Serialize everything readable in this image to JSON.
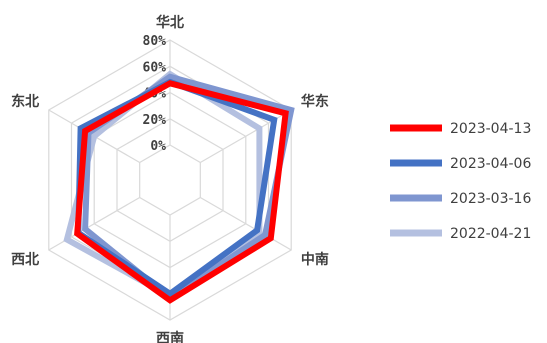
{
  "chart_data": {
    "type": "radar",
    "title": "",
    "categories": [
      "华北",
      "华东",
      "中南",
      "西南",
      "西北",
      "东北"
    ],
    "rlim": [
      0,
      80
    ],
    "ticks": [
      "0%",
      "20%",
      "40%",
      "60%",
      "80%"
    ],
    "grid": true,
    "legend": "right",
    "series": [
      {
        "name": "2023-04-13",
        "color": "#ff0000",
        "values": [
          47,
          75,
          62,
          65,
          55,
          48
        ]
      },
      {
        "name": "2023-04-06",
        "color": "#4472c4",
        "values": [
          48,
          65,
          50,
          60,
          54,
          52
        ]
      },
      {
        "name": "2023-03-16",
        "color": "#7f96d0",
        "values": [
          52,
          80,
          57,
          63,
          48,
          45
        ]
      },
      {
        "name": "2022-04-21",
        "color": "#b4c0e0",
        "values": [
          54,
          52,
          52,
          62,
          64,
          40
        ]
      }
    ]
  }
}
